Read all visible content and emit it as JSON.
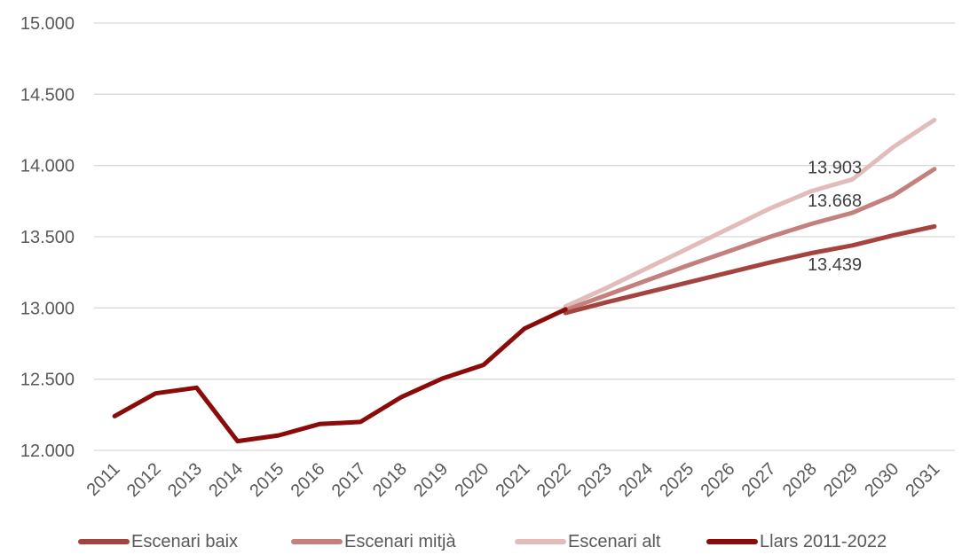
{
  "chart_data": {
    "type": "line",
    "title": "",
    "xlabel": "",
    "ylabel": "",
    "x": [
      "2011",
      "2012",
      "2013",
      "2014",
      "2015",
      "2016",
      "2017",
      "2018",
      "2019",
      "2020",
      "2021",
      "2022",
      "2023",
      "2024",
      "2025",
      "2026",
      "2027",
      "2028",
      "2029",
      "2030",
      "2031"
    ],
    "ylim": [
      12000,
      15000
    ],
    "y_ticks": [
      "12.000",
      "12.500",
      "13.000",
      "13.500",
      "14.000",
      "14.500",
      "15.000"
    ],
    "y_tick_values": [
      12000,
      12500,
      13000,
      13500,
      14000,
      14500,
      15000
    ],
    "grid": true,
    "legend_position": "bottom",
    "series": [
      {
        "name": "Escenari baix",
        "color": "#a5443f",
        "x": [
          "2022",
          "2023",
          "2024",
          "2025",
          "2026",
          "2027",
          "2028",
          "2029",
          "2030",
          "2031"
        ],
        "values": [
          12965,
          13040,
          13110,
          13180,
          13250,
          13320,
          13385,
          13439,
          13510,
          13572
        ]
      },
      {
        "name": "Escenari mitjà",
        "color": "#c4807c",
        "x": [
          "2022",
          "2023",
          "2024",
          "2025",
          "2026",
          "2027",
          "2028",
          "2029",
          "2030",
          "2031"
        ],
        "values": [
          12985,
          13090,
          13195,
          13300,
          13400,
          13500,
          13590,
          13668,
          13790,
          13975
        ]
      },
      {
        "name": "Escenari alt",
        "color": "#e1bcba",
        "x": [
          "2022",
          "2023",
          "2024",
          "2025",
          "2026",
          "2027",
          "2028",
          "2029",
          "2030",
          "2031"
        ],
        "values": [
          13010,
          13140,
          13280,
          13420,
          13560,
          13700,
          13820,
          13903,
          14130,
          14320
        ]
      },
      {
        "name": "Llars 2011-2022",
        "color": "#8b0a0a",
        "x": [
          "2011",
          "2012",
          "2013",
          "2014",
          "2015",
          "2016",
          "2017",
          "2018",
          "2019",
          "2020",
          "2021",
          "2022"
        ],
        "values": [
          12240,
          12400,
          12440,
          12065,
          12105,
          12185,
          12200,
          12375,
          12505,
          12600,
          12855,
          12990
        ]
      }
    ],
    "annotations": [
      {
        "text": "13.903",
        "x": "2029",
        "y": 13903
      },
      {
        "text": "13.668",
        "x": "2029",
        "y": 13668
      },
      {
        "text": "13.439",
        "x": "2029",
        "y": 13439
      }
    ]
  }
}
